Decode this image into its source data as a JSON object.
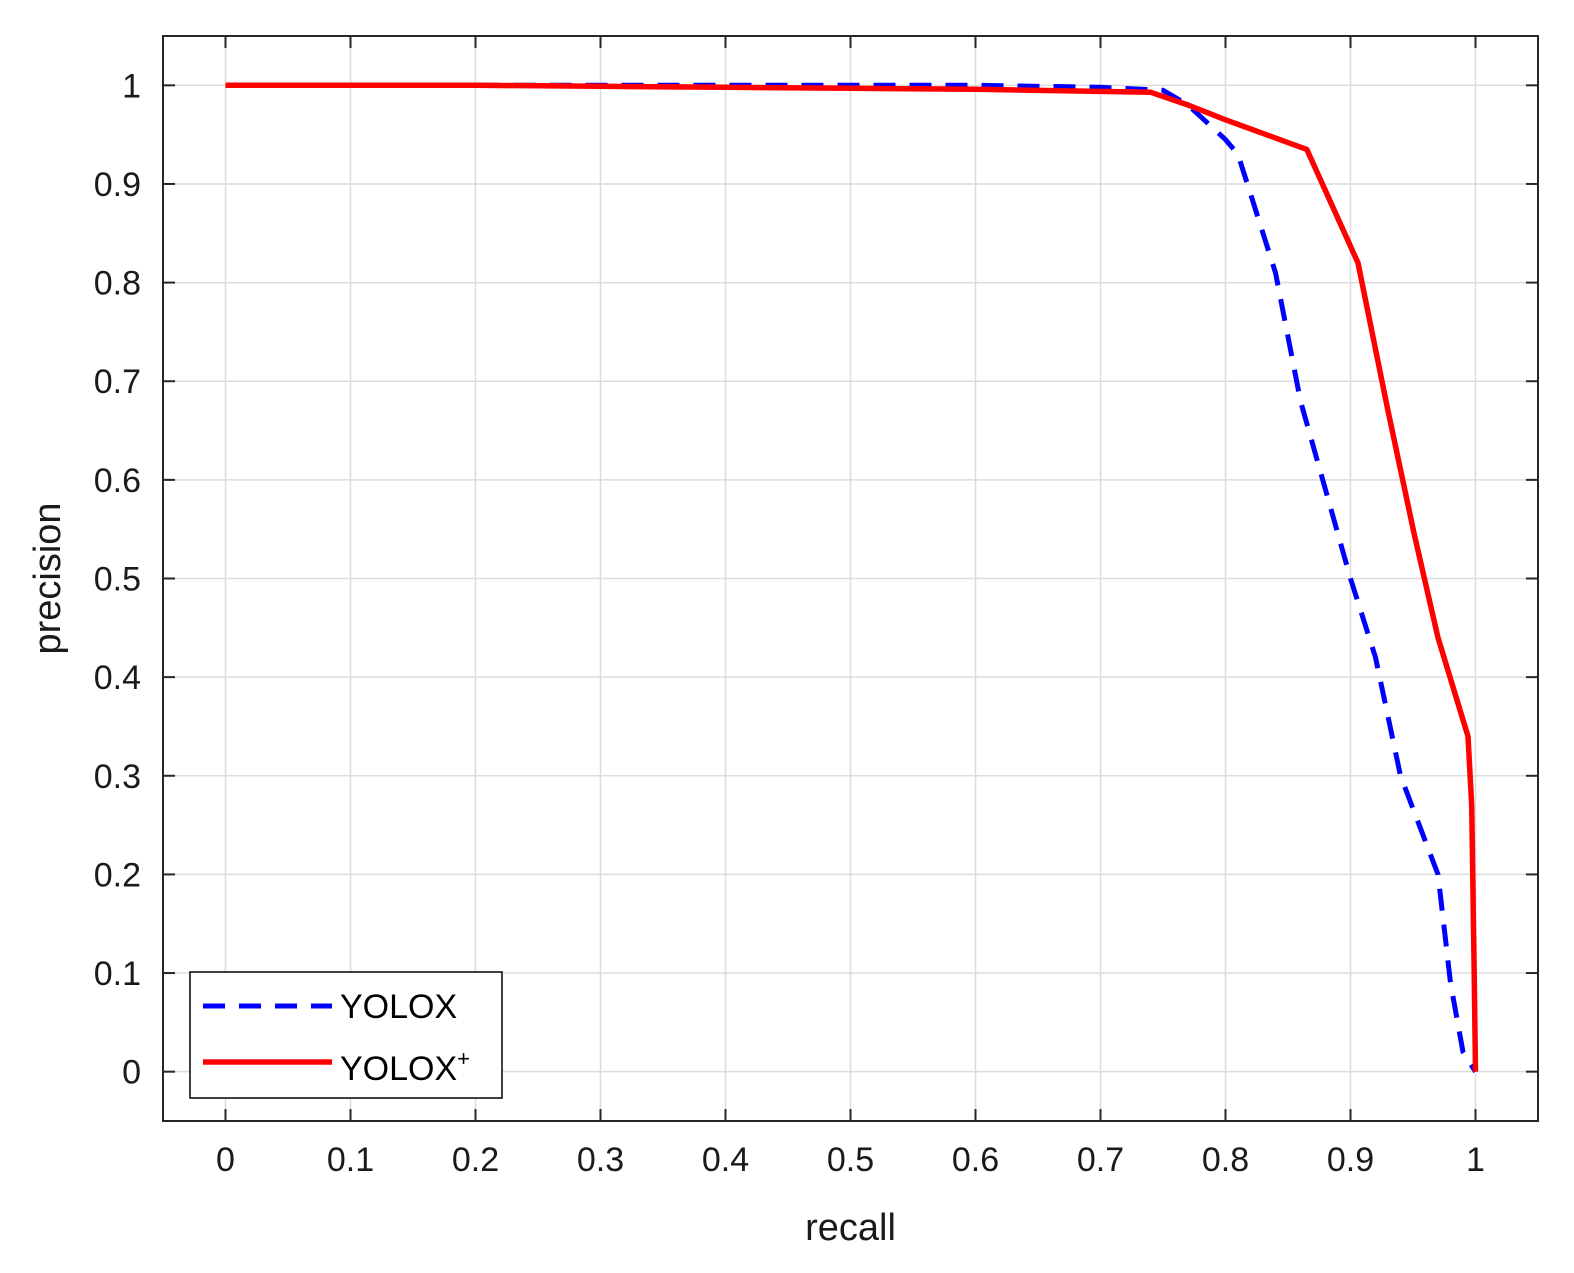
{
  "chart_data": {
    "type": "line",
    "xlabel": "recall",
    "ylabel": "precision",
    "xlim": [
      -0.05,
      1.05
    ],
    "ylim": [
      -0.05,
      1.05
    ],
    "xticks": [
      0,
      0.1,
      0.2,
      0.3,
      0.4,
      0.5,
      0.6,
      0.7,
      0.8,
      0.9,
      1
    ],
    "xtick_labels": [
      "0",
      "0.1",
      "0.2",
      "0.3",
      "0.4",
      "0.5",
      "0.6",
      "0.7",
      "0.8",
      "0.9",
      "1"
    ],
    "yticks": [
      0,
      0.1,
      0.2,
      0.3,
      0.4,
      0.5,
      0.6,
      0.7,
      0.8,
      0.9,
      1
    ],
    "ytick_labels": [
      "0",
      "0.1",
      "0.2",
      "0.3",
      "0.4",
      "0.5",
      "0.6",
      "0.7",
      "0.8",
      "0.9",
      "1"
    ],
    "grid": true,
    "legend_position": "bottom-left",
    "series": [
      {
        "name": "YOLOX",
        "color": "#0000ff",
        "style": "dashed",
        "x": [
          0,
          0.1,
          0.2,
          0.3,
          0.4,
          0.5,
          0.6,
          0.7,
          0.75,
          0.77,
          0.8,
          0.81,
          0.84,
          0.86,
          0.9,
          0.92,
          0.94,
          0.97,
          0.98,
          0.99,
          1.0
        ],
        "y": [
          1.0,
          1.0,
          1.0,
          1.0,
          1.0,
          1.0,
          1.0,
          0.998,
          0.995,
          0.98,
          0.945,
          0.93,
          0.81,
          0.68,
          0.5,
          0.42,
          0.3,
          0.2,
          0.09,
          0.02,
          0.0
        ]
      },
      {
        "name": "YOLOX",
        "name_sup": "+",
        "color": "#ff0000",
        "style": "solid",
        "x": [
          0,
          0.1,
          0.2,
          0.3,
          0.4,
          0.5,
          0.6,
          0.74,
          0.77,
          0.8,
          0.865,
          0.906,
          0.93,
          0.951,
          0.97,
          0.994,
          0.997,
          0.999,
          1.0
        ],
        "y": [
          1.0,
          1.0,
          1.0,
          0.999,
          0.998,
          0.997,
          0.996,
          0.993,
          0.98,
          0.965,
          0.935,
          0.82,
          0.67,
          0.545,
          0.44,
          0.34,
          0.27,
          0.1,
          0.0
        ]
      }
    ]
  }
}
